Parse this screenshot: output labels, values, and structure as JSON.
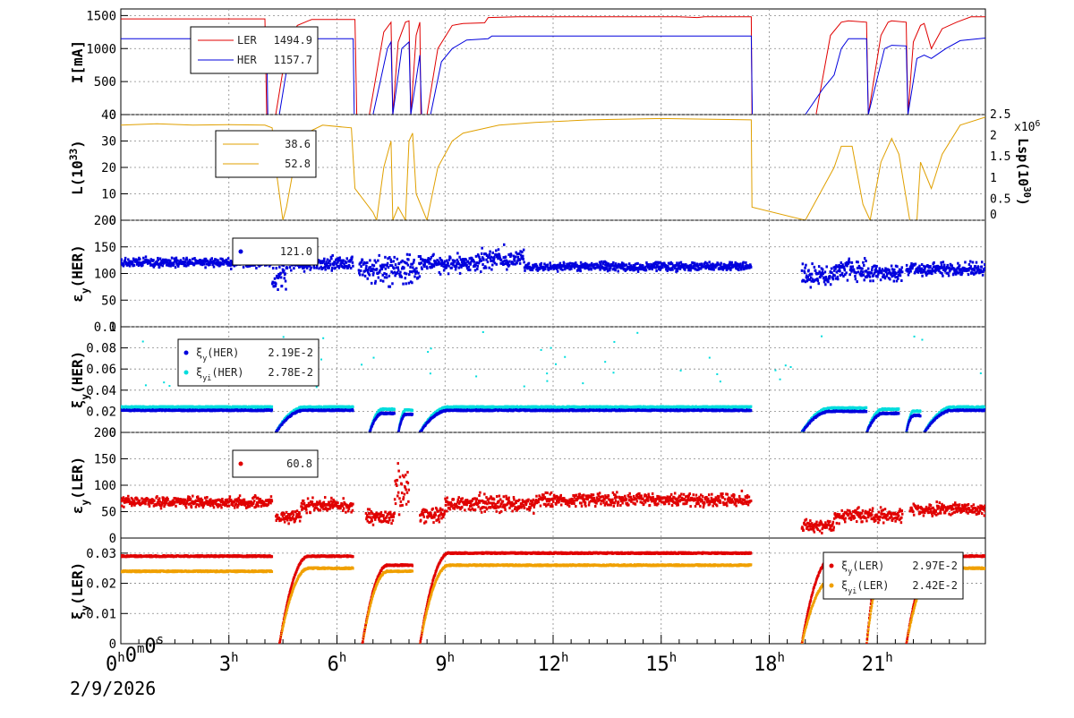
{
  "footer": {
    "date": "2/9/2026"
  },
  "chart_data": [
    {
      "type": "line",
      "ylabel": "I[mA]",
      "ylim": [
        0,
        1600
      ],
      "yticks": [
        0,
        500,
        1000,
        1500
      ],
      "legend": {
        "placement": "top-left",
        "entries": [
          {
            "name": "LER",
            "value": "1494.9",
            "color": "#e00000"
          },
          {
            "name": "HER",
            "value": "1157.7",
            "color": "#0000dd"
          }
        ]
      },
      "series": [
        {
          "name": "LER",
          "color": "#e00000",
          "points": [
            [
              0,
              1450
            ],
            [
              4.0,
              1450
            ],
            [
              4.05,
              0
            ],
            [
              4.3,
              0
            ],
            [
              4.6,
              1000
            ],
            [
              4.9,
              1350
            ],
            [
              5.2,
              1420
            ],
            [
              5.3,
              1440
            ],
            [
              6.5,
              1440
            ],
            [
              6.55,
              0
            ],
            [
              6.9,
              0
            ],
            [
              7.3,
              1250
            ],
            [
              7.5,
              1400
            ],
            [
              7.55,
              0
            ],
            [
              7.7,
              1100
            ],
            [
              7.9,
              1400
            ],
            [
              8.0,
              1420
            ],
            [
              8.05,
              0
            ],
            [
              8.2,
              1200
            ],
            [
              8.3,
              1400
            ],
            [
              8.33,
              0
            ],
            [
              8.5,
              0
            ],
            [
              8.8,
              1000
            ],
            [
              9.2,
              1350
            ],
            [
              9.5,
              1380
            ],
            [
              10.1,
              1390
            ],
            [
              10.2,
              1470
            ],
            [
              11,
              1480
            ],
            [
              13,
              1480
            ],
            [
              15.5,
              1480
            ],
            [
              16,
              1470
            ],
            [
              16.2,
              1480
            ],
            [
              17.5,
              1480
            ],
            [
              17.52,
              0
            ],
            [
              19.3,
              0
            ],
            [
              19.7,
              1200
            ],
            [
              20.0,
              1400
            ],
            [
              20.2,
              1420
            ],
            [
              20.7,
              1400
            ],
            [
              20.75,
              0
            ],
            [
              21.1,
              1200
            ],
            [
              21.3,
              1400
            ],
            [
              21.4,
              1420
            ],
            [
              21.8,
              1400
            ],
            [
              21.85,
              0
            ],
            [
              22.0,
              1100
            ],
            [
              22.2,
              1350
            ],
            [
              22.3,
              1380
            ],
            [
              22.5,
              1000
            ],
            [
              22.8,
              1300
            ],
            [
              23.2,
              1400
            ],
            [
              23.6,
              1480
            ],
            [
              24,
              1480
            ]
          ]
        },
        {
          "name": "HER",
          "color": "#0000dd",
          "points": [
            [
              0,
              1150
            ],
            [
              4.05,
              1150
            ],
            [
              4.08,
              0
            ],
            [
              4.4,
              0
            ],
            [
              4.7,
              1000
            ],
            [
              5.0,
              1120
            ],
            [
              5.3,
              1150
            ],
            [
              6.45,
              1150
            ],
            [
              6.48,
              0
            ],
            [
              7.0,
              0
            ],
            [
              7.4,
              1000
            ],
            [
              7.5,
              1100
            ],
            [
              7.55,
              0
            ],
            [
              7.8,
              1000
            ],
            [
              8.0,
              1100
            ],
            [
              8.05,
              0
            ],
            [
              8.3,
              900
            ],
            [
              8.35,
              0
            ],
            [
              8.6,
              0
            ],
            [
              8.9,
              800
            ],
            [
              9.2,
              1000
            ],
            [
              9.6,
              1130
            ],
            [
              10.2,
              1150
            ],
            [
              10.3,
              1190
            ],
            [
              13,
              1190
            ],
            [
              17.5,
              1190
            ],
            [
              17.53,
              0
            ],
            [
              19.0,
              0
            ],
            [
              19.5,
              400
            ],
            [
              19.8,
              600
            ],
            [
              20.0,
              1000
            ],
            [
              20.2,
              1150
            ],
            [
              20.7,
              1150
            ],
            [
              20.75,
              0
            ],
            [
              21.2,
              1000
            ],
            [
              21.4,
              1050
            ],
            [
              21.8,
              1040
            ],
            [
              21.85,
              0
            ],
            [
              22.1,
              850
            ],
            [
              22.3,
              900
            ],
            [
              22.5,
              850
            ],
            [
              22.9,
              1000
            ],
            [
              23.3,
              1120
            ],
            [
              24,
              1160
            ]
          ]
        }
      ]
    },
    {
      "type": "line",
      "ylabel": "L(10^33)",
      "ylim": [
        0,
        40
      ],
      "yticks": [
        0,
        10,
        20,
        30,
        40
      ],
      "y2label": "Lsp(10^30)",
      "y2ticks": [
        "0",
        "0.5",
        "1",
        "1.5",
        "2",
        "2.5"
      ],
      "y2_multiplier": "x10^6",
      "legend": {
        "placement": "top-left",
        "entries": [
          {
            "name": "",
            "value": "38.6",
            "color": "#e0a000"
          },
          {
            "name": "",
            "value": "52.8",
            "color": "#e0a000"
          }
        ]
      },
      "series": [
        {
          "name": "",
          "color": "#e0a000",
          "points": [
            [
              0,
              36
            ],
            [
              1,
              36.5
            ],
            [
              2,
              36
            ],
            [
              3,
              36.2
            ],
            [
              4,
              36
            ],
            [
              4.2,
              35
            ],
            [
              4.3,
              20
            ],
            [
              4.5,
              0
            ],
            [
              4.6,
              5
            ],
            [
              4.8,
              20
            ],
            [
              5.0,
              30
            ],
            [
              5.3,
              34
            ],
            [
              5.6,
              36
            ],
            [
              6.4,
              35
            ],
            [
              6.5,
              12
            ],
            [
              7.0,
              3
            ],
            [
              7.1,
              0
            ],
            [
              7.3,
              20
            ],
            [
              7.5,
              30
            ],
            [
              7.55,
              0
            ],
            [
              7.7,
              5
            ],
            [
              7.9,
              0
            ],
            [
              8.0,
              30
            ],
            [
              8.1,
              33
            ],
            [
              8.2,
              10
            ],
            [
              8.5,
              0
            ],
            [
              8.8,
              20
            ],
            [
              9.2,
              30
            ],
            [
              9.5,
              33
            ],
            [
              10.5,
              36
            ],
            [
              11.5,
              37
            ],
            [
              13,
              38
            ],
            [
              15,
              38.5
            ],
            [
              17.5,
              38
            ],
            [
              17.52,
              5
            ],
            [
              19.0,
              0
            ],
            [
              19.8,
              20
            ],
            [
              20.0,
              28
            ],
            [
              20.3,
              28
            ],
            [
              20.6,
              6
            ],
            [
              20.8,
              0
            ],
            [
              21.1,
              22
            ],
            [
              21.4,
              31
            ],
            [
              21.6,
              25
            ],
            [
              21.9,
              0
            ],
            [
              22.1,
              0
            ],
            [
              22.2,
              22
            ],
            [
              22.5,
              12
            ],
            [
              22.8,
              25
            ],
            [
              23.3,
              36
            ],
            [
              24,
              39
            ]
          ]
        }
      ]
    },
    {
      "type": "scatter",
      "ylabel": "εy(HER)",
      "ylim": [
        0,
        200
      ],
      "yticks": [
        0,
        50,
        100,
        150,
        200
      ],
      "legend": {
        "placement": "top-left",
        "entries": [
          {
            "name": "",
            "value": "121.0",
            "color": "#0000dd"
          }
        ]
      },
      "series": [
        {
          "name": "",
          "color": "#0000dd",
          "segments": [
            [
              0,
              4.2,
              120,
              8
            ],
            [
              4.2,
              4.6,
              95,
              25
            ],
            [
              4.6,
              6.45,
              118,
              12
            ],
            [
              6.6,
              8.3,
              108,
              25
            ],
            [
              8.3,
              10.0,
              118,
              15
            ],
            [
              10.0,
              11.2,
              128,
              18
            ],
            [
              11.2,
              17.5,
              113,
              8
            ],
            [
              18.9,
              19.8,
              95,
              18
            ],
            [
              19.8,
              20.7,
              105,
              20
            ],
            [
              20.7,
              21.7,
              100,
              15
            ],
            [
              21.8,
              24,
              108,
              12
            ]
          ]
        }
      ]
    },
    {
      "type": "scatter",
      "ylabel": "ξy(HER)",
      "ylim": [
        0,
        0.1
      ],
      "yticks": [
        0,
        0.02,
        0.04,
        0.06,
        0.08,
        0.1
      ],
      "legend": {
        "placement": "top-left",
        "entries": [
          {
            "name": "ξy(HER)",
            "value": "2.19E-2",
            "color": "#0000dd"
          },
          {
            "name": "ξyi(HER)",
            "value": "2.78E-2",
            "color": "#00dddd"
          }
        ]
      },
      "series": [
        {
          "name": "ξy(HER)",
          "color": "#0000dd"
        },
        {
          "name": "ξyi(HER)",
          "color": "#00dddd"
        }
      ]
    },
    {
      "type": "scatter",
      "ylabel": "εy(LER)",
      "ylim": [
        0,
        200
      ],
      "yticks": [
        0,
        50,
        100,
        150,
        200
      ],
      "legend": {
        "placement": "top-left",
        "entries": [
          {
            "name": "",
            "value": "60.8",
            "color": "#e00000"
          }
        ]
      },
      "series": [
        {
          "name": "",
          "color": "#e00000",
          "segments": [
            [
              0,
              4.2,
              68,
              10
            ],
            [
              4.3,
              5.0,
              40,
              12
            ],
            [
              5.0,
              6.45,
              62,
              12
            ],
            [
              6.8,
              7.6,
              40,
              12
            ],
            [
              7.6,
              8.0,
              90,
              40
            ],
            [
              8.3,
              9.0,
              45,
              12
            ],
            [
              9.0,
              11.5,
              65,
              15
            ],
            [
              11.5,
              17.5,
              72,
              12
            ],
            [
              18.9,
              19.8,
              22,
              12
            ],
            [
              19.8,
              20.7,
              42,
              12
            ],
            [
              20.7,
              21.7,
              42,
              12
            ],
            [
              21.9,
              24,
              55,
              10
            ]
          ]
        }
      ]
    },
    {
      "type": "scatter",
      "ylabel": "ξy(LER)",
      "ylim": [
        0,
        0.035
      ],
      "yticks": [
        0,
        0.01,
        0.02,
        0.03
      ],
      "legend": {
        "placement": "top-right",
        "entries": [
          {
            "name": "ξy(LER)",
            "value": "2.97E-2",
            "color": "#e00000"
          },
          {
            "name": "ξyi(LER)",
            "value": "2.42E-2",
            "color": "#f0a000"
          }
        ]
      },
      "series": [
        {
          "name": "ξy(LER)",
          "color": "#e00000"
        },
        {
          "name": "ξyi(LER)",
          "color": "#f0a000"
        }
      ]
    }
  ],
  "x_axis": {
    "range_hours": [
      0,
      24
    ],
    "tick_labels": [
      {
        "h": 0,
        "label": "0h0m0s"
      },
      {
        "h": 3,
        "label": "3h"
      },
      {
        "h": 6,
        "label": "6h"
      },
      {
        "h": 9,
        "label": "9h"
      },
      {
        "h": 12,
        "label": "12h"
      },
      {
        "h": 15,
        "label": "15h"
      },
      {
        "h": 18,
        "label": "18h"
      },
      {
        "h": 21,
        "label": "21h"
      }
    ]
  }
}
